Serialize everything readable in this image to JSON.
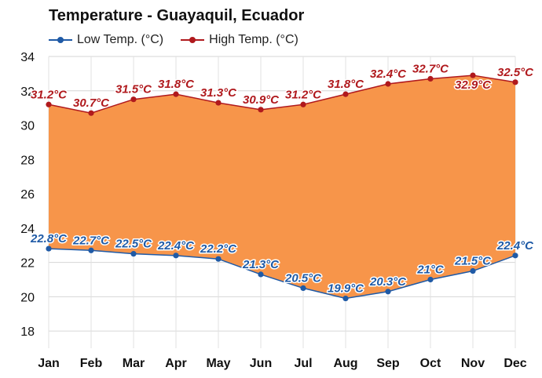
{
  "chart_data": {
    "type": "area",
    "title": "Temperature - Guayaquil, Ecuador",
    "categories": [
      "Jan",
      "Feb",
      "Mar",
      "Apr",
      "May",
      "Jun",
      "Jul",
      "Aug",
      "Sep",
      "Oct",
      "Nov",
      "Dec"
    ],
    "series": [
      {
        "name": "Low Temp. (°C)",
        "color": "#1f5aa6",
        "values": [
          22.8,
          22.7,
          22.5,
          22.4,
          22.2,
          21.3,
          20.5,
          19.9,
          20.3,
          21.0,
          21.5,
          22.4
        ],
        "labels": [
          "22.8°C",
          "22.7°C",
          "22.5°C",
          "22.4°C",
          "22.2°C",
          "21.3°C",
          "20.5°C",
          "19.9°C",
          "20.3°C",
          "21°C",
          "21.5°C",
          "22.4°C"
        ]
      },
      {
        "name": "High Temp. (°C)",
        "color": "#b0191d",
        "values": [
          31.2,
          30.7,
          31.5,
          31.8,
          31.3,
          30.9,
          31.2,
          31.8,
          32.4,
          32.7,
          32.9,
          32.5
        ],
        "labels": [
          "31.2°C",
          "30.7°C",
          "31.5°C",
          "31.8°C",
          "31.3°C",
          "30.9°C",
          "31.2°C",
          "31.8°C",
          "32.4°C",
          "32.7°C",
          "32.9°C",
          "32.5°C"
        ]
      }
    ],
    "fill_color": "#f7954a",
    "ylim": [
      17,
      34
    ],
    "yticks": [
      18,
      20,
      22,
      24,
      26,
      28,
      30,
      32,
      34
    ],
    "grid": true,
    "legend_position": "top-left"
  }
}
